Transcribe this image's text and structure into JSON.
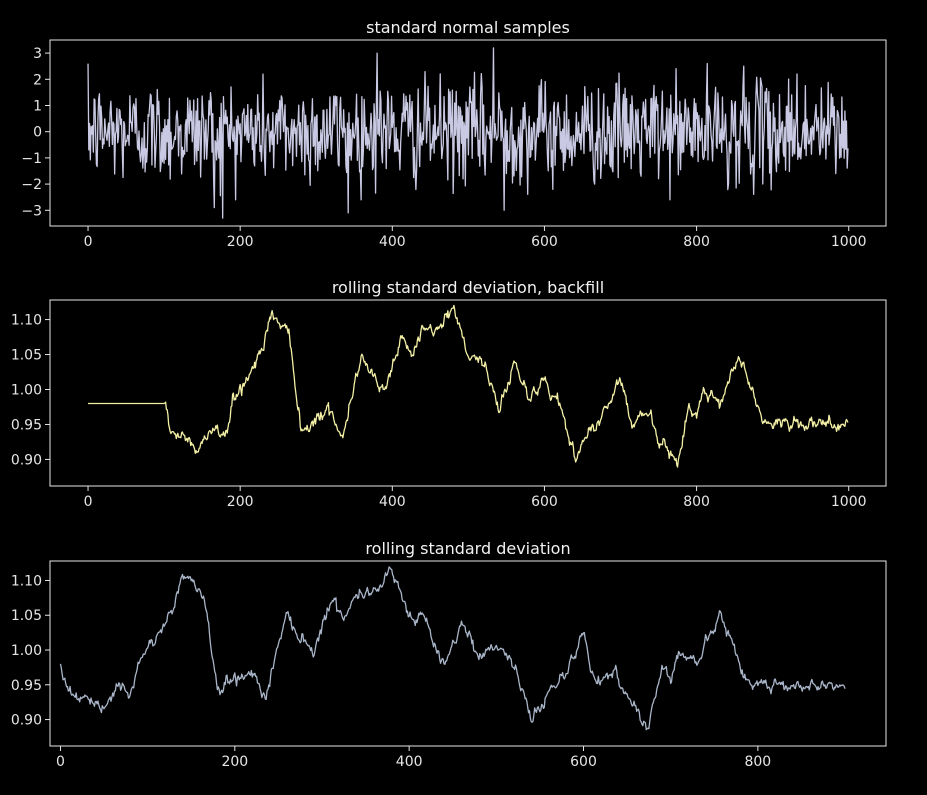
{
  "chart_data": [
    {
      "type": "line",
      "title": "standard normal samples",
      "xlabel": "",
      "ylabel": "",
      "xlim": [
        -50,
        1049
      ],
      "ylim": [
        -3.6,
        3.5
      ],
      "xticks": [
        0,
        200,
        400,
        600,
        800,
        1000
      ],
      "yticks": [
        -3,
        -2,
        -1,
        0,
        1,
        2,
        3
      ],
      "ytick_decimals": 0,
      "grid": false,
      "color": "#c9c9e3",
      "series": [
        {
          "generator": "noise",
          "seed": 12345,
          "n": 1000,
          "x_start": 0,
          "x_step": 1,
          "mean": 0,
          "std": 0.95,
          "peaks": [
            [
              166,
              -2.9
            ],
            [
              177,
              -3.3
            ],
            [
              342,
              -3.1
            ],
            [
              380,
              3.0
            ],
            [
              533,
              3.2
            ],
            [
              547,
              -3.0
            ],
            [
              862,
              2.5
            ],
            [
              932,
              2.2
            ]
          ]
        }
      ]
    },
    {
      "type": "line",
      "title": "rolling standard deviation, backfill",
      "xlabel": "",
      "ylabel": "",
      "xlim": [
        -50,
        1049
      ],
      "ylim": [
        0.862,
        1.128
      ],
      "xticks": [
        0,
        200,
        400,
        600,
        800,
        1000
      ],
      "yticks": [
        0.9,
        0.95,
        1.0,
        1.05,
        1.1
      ],
      "ytick_decimals": 2,
      "grid": false,
      "color": "#f3f0a6",
      "series": [
        {
          "generator": "walk",
          "seed": 777,
          "n": 1000,
          "x_start": 0,
          "x_step": 1,
          "flat_until": 100,
          "flat_value": 0.98,
          "knots": [
            [
              100,
              0.98
            ],
            [
              110,
              0.94
            ],
            [
              130,
              0.93
            ],
            [
              145,
              0.91
            ],
            [
              165,
              0.95
            ],
            [
              180,
              0.93
            ],
            [
              190,
              0.98
            ],
            [
              210,
              1.02
            ],
            [
              230,
              1.06
            ],
            [
              240,
              1.11
            ],
            [
              255,
              1.09
            ],
            [
              265,
              1.08
            ],
            [
              280,
              0.94
            ],
            [
              300,
              0.96
            ],
            [
              320,
              0.97
            ],
            [
              335,
              0.93
            ],
            [
              350,
              1.01
            ],
            [
              360,
              1.05
            ],
            [
              375,
              1.02
            ],
            [
              390,
              1.0
            ],
            [
              410,
              1.07
            ],
            [
              425,
              1.05
            ],
            [
              440,
              1.08
            ],
            [
              465,
              1.09
            ],
            [
              480,
              1.12
            ],
            [
              500,
              1.05
            ],
            [
              520,
              1.04
            ],
            [
              540,
              0.97
            ],
            [
              560,
              1.04
            ],
            [
              580,
              0.99
            ],
            [
              600,
              1.01
            ],
            [
              620,
              0.98
            ],
            [
              640,
              0.9
            ],
            [
              660,
              0.94
            ],
            [
              680,
              0.97
            ],
            [
              700,
              1.02
            ],
            [
              715,
              0.95
            ],
            [
              735,
              0.97
            ],
            [
              750,
              0.93
            ],
            [
              775,
              0.89
            ],
            [
              790,
              0.98
            ],
            [
              800,
              0.96
            ],
            [
              810,
              1.0
            ],
            [
              830,
              0.98
            ],
            [
              855,
              1.05
            ],
            [
              870,
              1.01
            ],
            [
              885,
              0.96
            ],
            [
              900,
              0.95
            ]
          ]
        }
      ]
    },
    {
      "type": "line",
      "title": "rolling standard deviation",
      "xlabel": "",
      "ylabel": "",
      "xlim": [
        -12,
        947
      ],
      "ylim": [
        0.862,
        1.128
      ],
      "xticks": [
        0,
        200,
        400,
        600,
        800
      ],
      "yticks": [
        0.9,
        0.95,
        1.0,
        1.05,
        1.1
      ],
      "ytick_decimals": 2,
      "grid": false,
      "color": "#a9b5c8",
      "series": [
        {
          "generator": "walk",
          "seed": 777,
          "n": 901,
          "x_start": 0,
          "x_step": 1,
          "knots": [
            [
              0,
              0.98
            ],
            [
              10,
              0.94
            ],
            [
              30,
              0.93
            ],
            [
              45,
              0.91
            ],
            [
              65,
              0.95
            ],
            [
              80,
              0.93
            ],
            [
              90,
              0.98
            ],
            [
              110,
              1.02
            ],
            [
              130,
              1.06
            ],
            [
              140,
              1.11
            ],
            [
              155,
              1.09
            ],
            [
              165,
              1.08
            ],
            [
              180,
              0.94
            ],
            [
              200,
              0.96
            ],
            [
              220,
              0.97
            ],
            [
              235,
              0.93
            ],
            [
              250,
              1.01
            ],
            [
              260,
              1.05
            ],
            [
              275,
              1.02
            ],
            [
              290,
              1.0
            ],
            [
              310,
              1.07
            ],
            [
              325,
              1.05
            ],
            [
              340,
              1.08
            ],
            [
              365,
              1.09
            ],
            [
              380,
              1.12
            ],
            [
              400,
              1.05
            ],
            [
              420,
              1.04
            ],
            [
              440,
              0.97
            ],
            [
              460,
              1.04
            ],
            [
              480,
              0.99
            ],
            [
              500,
              1.01
            ],
            [
              520,
              0.98
            ],
            [
              540,
              0.9
            ],
            [
              560,
              0.94
            ],
            [
              580,
              0.97
            ],
            [
              600,
              1.02
            ],
            [
              615,
              0.95
            ],
            [
              635,
              0.97
            ],
            [
              650,
              0.93
            ],
            [
              675,
              0.89
            ],
            [
              690,
              0.98
            ],
            [
              700,
              0.96
            ],
            [
              710,
              1.0
            ],
            [
              730,
              0.98
            ],
            [
              755,
              1.05
            ],
            [
              770,
              1.01
            ],
            [
              785,
              0.96
            ],
            [
              800,
              0.95
            ],
            [
              900,
              0.95
            ]
          ]
        }
      ]
    }
  ]
}
